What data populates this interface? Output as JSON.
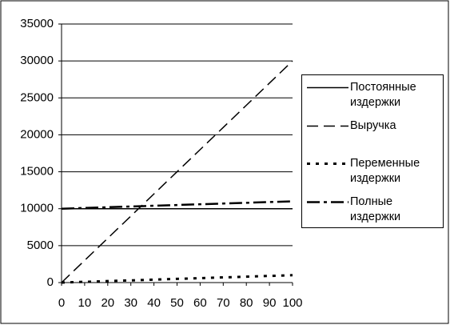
{
  "chart_data": {
    "type": "line",
    "x": [
      0,
      10,
      20,
      30,
      40,
      50,
      60,
      70,
      80,
      90,
      100
    ],
    "series": [
      {
        "name": "Постоянные издержки",
        "color": "#000000",
        "values": [
          10000,
          10000,
          10000,
          10000,
          10000,
          10000,
          10000,
          10000,
          10000,
          10000,
          10000
        ]
      },
      {
        "name": "Выручка",
        "color": "#000000",
        "values": [
          0,
          3000,
          6000,
          9000,
          12000,
          15000,
          18000,
          21000,
          24000,
          27000,
          30000
        ]
      },
      {
        "name": "Переменные издержки",
        "color": "#000000",
        "values": [
          0,
          100,
          200,
          300,
          400,
          500,
          600,
          700,
          800,
          900,
          1000
        ]
      },
      {
        "name": "Полные издержки",
        "color": "#000000",
        "values": [
          10000,
          10100,
          10200,
          10300,
          10400,
          10500,
          10600,
          10700,
          10800,
          10900,
          11000
        ]
      }
    ],
    "xlim": [
      0,
      100
    ],
    "xticks": [
      0,
      10,
      20,
      30,
      40,
      50,
      60,
      70,
      80,
      90,
      100
    ],
    "ylim": [
      0,
      35000
    ],
    "yticks": [
      0,
      5000,
      10000,
      15000,
      20000,
      25000,
      30000,
      35000
    ],
    "grid": true,
    "legend": "right"
  }
}
